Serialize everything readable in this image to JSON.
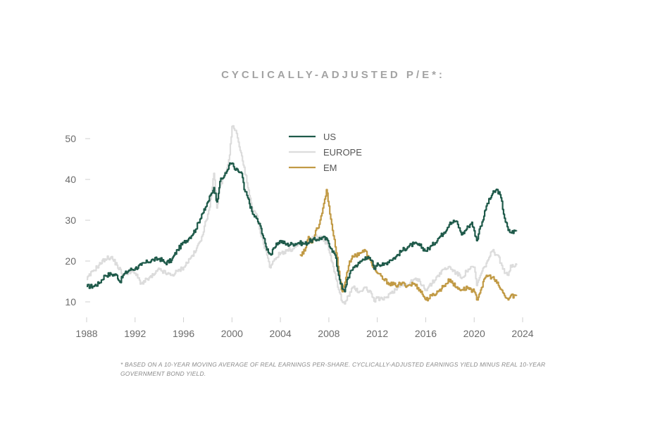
{
  "title": "CYCLICALLY-ADJUSTED P/E*:",
  "footnote": "* BASED ON A 10-YEAR MOVING AVERAGE OF REAL EARNINGS PER-SHARE. CYCLICALLY-ADJUSTED EARNINGS YIELD MINUS REAL 10-YEAR GOVERNMENT BOND YIELD.",
  "chart_data": {
    "type": "line",
    "title": "CYCLICALLY-ADJUSTED P/E*:",
    "xlabel": "",
    "ylabel": "",
    "xlim": [
      1988,
      2024
    ],
    "ylim": [
      5,
      55
    ],
    "x_ticks": [
      1988,
      1992,
      1996,
      2000,
      2004,
      2008,
      2012,
      2016,
      2020,
      2024
    ],
    "y_ticks": [
      10,
      20,
      30,
      40,
      50
    ],
    "grid": false,
    "legend": "top-center",
    "series": [
      {
        "name": "US",
        "color": "#1f5a4a",
        "points": [
          [
            1988.0,
            13.8
          ],
          [
            1988.5,
            13.8
          ],
          [
            1989.0,
            14.5
          ],
          [
            1989.5,
            16.5
          ],
          [
            1990.0,
            16.8
          ],
          [
            1990.5,
            16.5
          ],
          [
            1990.75,
            14.8
          ],
          [
            1991.0,
            16.5
          ],
          [
            1991.5,
            17.8
          ],
          [
            1992.0,
            18.2
          ],
          [
            1992.5,
            19.0
          ],
          [
            1993.0,
            19.8
          ],
          [
            1993.5,
            20.3
          ],
          [
            1994.0,
            20.6
          ],
          [
            1994.5,
            19.5
          ],
          [
            1995.0,
            20.2
          ],
          [
            1995.5,
            22.8
          ],
          [
            1996.0,
            24.5
          ],
          [
            1996.5,
            25.8
          ],
          [
            1997.0,
            27.8
          ],
          [
            1997.5,
            31.5
          ],
          [
            1997.75,
            32.5
          ],
          [
            1998.0,
            34.5
          ],
          [
            1998.5,
            38.0
          ],
          [
            1998.75,
            34.5
          ],
          [
            1999.0,
            39.5
          ],
          [
            1999.5,
            41.5
          ],
          [
            1999.75,
            43.5
          ],
          [
            2000.0,
            44.0
          ],
          [
            2000.2,
            42.5
          ],
          [
            2000.5,
            42.0
          ],
          [
            2000.8,
            41.5
          ],
          [
            2001.0,
            37.5
          ],
          [
            2001.3,
            35.5
          ],
          [
            2001.7,
            31.5
          ],
          [
            2002.0,
            30.5
          ],
          [
            2002.4,
            28.0
          ],
          [
            2002.8,
            23.5
          ],
          [
            2003.2,
            21.5
          ],
          [
            2003.5,
            23.2
          ],
          [
            2003.8,
            24.5
          ],
          [
            2004.0,
            25.0
          ],
          [
            2004.5,
            24.0
          ],
          [
            2005.0,
            24.2
          ],
          [
            2005.5,
            24.5
          ],
          [
            2006.0,
            24.2
          ],
          [
            2006.5,
            25.0
          ],
          [
            2007.0,
            25.3
          ],
          [
            2007.5,
            25.8
          ],
          [
            2007.9,
            25.0
          ],
          [
            2008.2,
            23.0
          ],
          [
            2008.5,
            21.5
          ],
          [
            2008.8,
            16.5
          ],
          [
            2009.1,
            13.2
          ],
          [
            2009.3,
            12.5
          ],
          [
            2009.5,
            15.5
          ],
          [
            2010.0,
            18.5
          ],
          [
            2010.5,
            19.5
          ],
          [
            2011.0,
            21.0
          ],
          [
            2011.5,
            20.2
          ],
          [
            2011.8,
            18.0
          ],
          [
            2012.0,
            19.5
          ],
          [
            2012.5,
            19.0
          ],
          [
            2013.0,
            20.2
          ],
          [
            2013.5,
            21.0
          ],
          [
            2014.0,
            22.5
          ],
          [
            2014.5,
            23.5
          ],
          [
            2015.0,
            24.2
          ],
          [
            2015.5,
            23.8
          ],
          [
            2016.0,
            22.5
          ],
          [
            2016.5,
            23.8
          ],
          [
            2017.0,
            25.5
          ],
          [
            2017.5,
            27.0
          ],
          [
            2018.0,
            29.5
          ],
          [
            2018.5,
            29.8
          ],
          [
            2018.9,
            27.0
          ],
          [
            2019.0,
            26.5
          ],
          [
            2019.5,
            28.5
          ],
          [
            2019.8,
            29.5
          ],
          [
            2020.2,
            25.0
          ],
          [
            2020.5,
            28.5
          ],
          [
            2020.8,
            31.0
          ],
          [
            2021.0,
            33.5
          ],
          [
            2021.5,
            36.5
          ],
          [
            2021.9,
            37.5
          ],
          [
            2022.2,
            35.5
          ],
          [
            2022.5,
            30.5
          ],
          [
            2022.8,
            27.5
          ],
          [
            2023.0,
            27.0
          ],
          [
            2023.5,
            27.5
          ]
        ]
      },
      {
        "name": "EUROPE",
        "color": "#dcdcdc",
        "points": [
          [
            1988.0,
            15.5
          ],
          [
            1988.5,
            17.5
          ],
          [
            1989.0,
            19.0
          ],
          [
            1989.5,
            20.5
          ],
          [
            1990.0,
            21.0
          ],
          [
            1990.5,
            19.0
          ],
          [
            1991.0,
            16.5
          ],
          [
            1991.5,
            17.5
          ],
          [
            1992.0,
            17.0
          ],
          [
            1992.5,
            14.5
          ],
          [
            1993.0,
            15.5
          ],
          [
            1993.5,
            16.5
          ],
          [
            1994.0,
            18.0
          ],
          [
            1994.5,
            17.0
          ],
          [
            1995.0,
            16.5
          ],
          [
            1995.5,
            17.5
          ],
          [
            1996.0,
            18.5
          ],
          [
            1996.5,
            20.5
          ],
          [
            1997.0,
            22.5
          ],
          [
            1997.5,
            26.0
          ],
          [
            1998.0,
            31.5
          ],
          [
            1998.3,
            36.0
          ],
          [
            1998.5,
            41.5
          ],
          [
            1998.75,
            33.0
          ],
          [
            1999.0,
            38.5
          ],
          [
            1999.5,
            42.0
          ],
          [
            1999.8,
            46.0
          ],
          [
            2000.0,
            53.0
          ],
          [
            2000.3,
            52.0
          ],
          [
            2000.6,
            48.0
          ],
          [
            2001.0,
            43.0
          ],
          [
            2001.3,
            38.0
          ],
          [
            2001.7,
            32.0
          ],
          [
            2002.0,
            31.5
          ],
          [
            2002.4,
            26.0
          ],
          [
            2002.8,
            22.5
          ],
          [
            2003.1,
            18.5
          ],
          [
            2003.5,
            20.5
          ],
          [
            2004.0,
            22.0
          ],
          [
            2004.5,
            22.5
          ],
          [
            2005.0,
            23.0
          ],
          [
            2005.5,
            24.0
          ],
          [
            2006.0,
            24.5
          ],
          [
            2006.5,
            25.5
          ],
          [
            2007.0,
            26.0
          ],
          [
            2007.5,
            25.5
          ],
          [
            2007.9,
            24.0
          ],
          [
            2008.2,
            20.0
          ],
          [
            2008.5,
            17.0
          ],
          [
            2008.8,
            13.0
          ],
          [
            2009.1,
            10.0
          ],
          [
            2009.3,
            9.5
          ],
          [
            2009.6,
            11.5
          ],
          [
            2010.0,
            13.5
          ],
          [
            2010.5,
            12.5
          ],
          [
            2011.0,
            13.5
          ],
          [
            2011.5,
            12.0
          ],
          [
            2011.8,
            10.0
          ],
          [
            2012.0,
            11.0
          ],
          [
            2012.5,
            10.5
          ],
          [
            2013.0,
            12.0
          ],
          [
            2013.5,
            13.0
          ],
          [
            2014.0,
            14.5
          ],
          [
            2014.5,
            14.0
          ],
          [
            2015.0,
            15.5
          ],
          [
            2015.5,
            15.0
          ],
          [
            2016.0,
            13.0
          ],
          [
            2016.5,
            14.5
          ],
          [
            2017.0,
            16.5
          ],
          [
            2017.5,
            18.0
          ],
          [
            2018.0,
            18.5
          ],
          [
            2018.5,
            17.0
          ],
          [
            2019.0,
            16.0
          ],
          [
            2019.5,
            18.0
          ],
          [
            2020.0,
            18.5
          ],
          [
            2020.2,
            14.0
          ],
          [
            2020.5,
            16.5
          ],
          [
            2021.0,
            19.5
          ],
          [
            2021.5,
            22.5
          ],
          [
            2021.9,
            21.5
          ],
          [
            2022.2,
            19.5
          ],
          [
            2022.5,
            17.0
          ],
          [
            2022.8,
            16.5
          ],
          [
            2023.0,
            19.0
          ],
          [
            2023.5,
            19.0
          ]
        ]
      },
      {
        "name": "EM",
        "color": "#c19a45",
        "points": [
          [
            2005.6,
            21.5
          ],
          [
            2006.0,
            22.5
          ],
          [
            2006.3,
            26.0
          ],
          [
            2006.6,
            24.5
          ],
          [
            2006.9,
            27.5
          ],
          [
            2007.2,
            29.0
          ],
          [
            2007.5,
            33.0
          ],
          [
            2007.8,
            37.5
          ],
          [
            2008.0,
            33.5
          ],
          [
            2008.3,
            27.5
          ],
          [
            2008.6,
            22.0
          ],
          [
            2008.9,
            15.5
          ],
          [
            2009.1,
            12.5
          ],
          [
            2009.4,
            16.0
          ],
          [
            2009.7,
            20.0
          ],
          [
            2010.0,
            21.0
          ],
          [
            2010.5,
            22.0
          ],
          [
            2011.0,
            22.5
          ],
          [
            2011.3,
            20.5
          ],
          [
            2011.7,
            18.5
          ],
          [
            2012.0,
            17.0
          ],
          [
            2012.5,
            15.5
          ],
          [
            2013.0,
            14.5
          ],
          [
            2013.5,
            14.0
          ],
          [
            2014.0,
            14.5
          ],
          [
            2014.5,
            14.0
          ],
          [
            2015.0,
            14.5
          ],
          [
            2015.5,
            13.0
          ],
          [
            2016.0,
            10.5
          ],
          [
            2016.5,
            11.5
          ],
          [
            2017.0,
            12.5
          ],
          [
            2017.5,
            14.0
          ],
          [
            2018.0,
            15.5
          ],
          [
            2018.5,
            13.5
          ],
          [
            2019.0,
            13.0
          ],
          [
            2019.5,
            13.5
          ],
          [
            2020.0,
            12.5
          ],
          [
            2020.2,
            10.5
          ],
          [
            2020.6,
            13.5
          ],
          [
            2021.0,
            16.5
          ],
          [
            2021.5,
            16.0
          ],
          [
            2022.0,
            14.0
          ],
          [
            2022.5,
            11.5
          ],
          [
            2022.8,
            10.5
          ],
          [
            2023.0,
            11.5
          ],
          [
            2023.5,
            11.5
          ]
        ]
      }
    ]
  }
}
